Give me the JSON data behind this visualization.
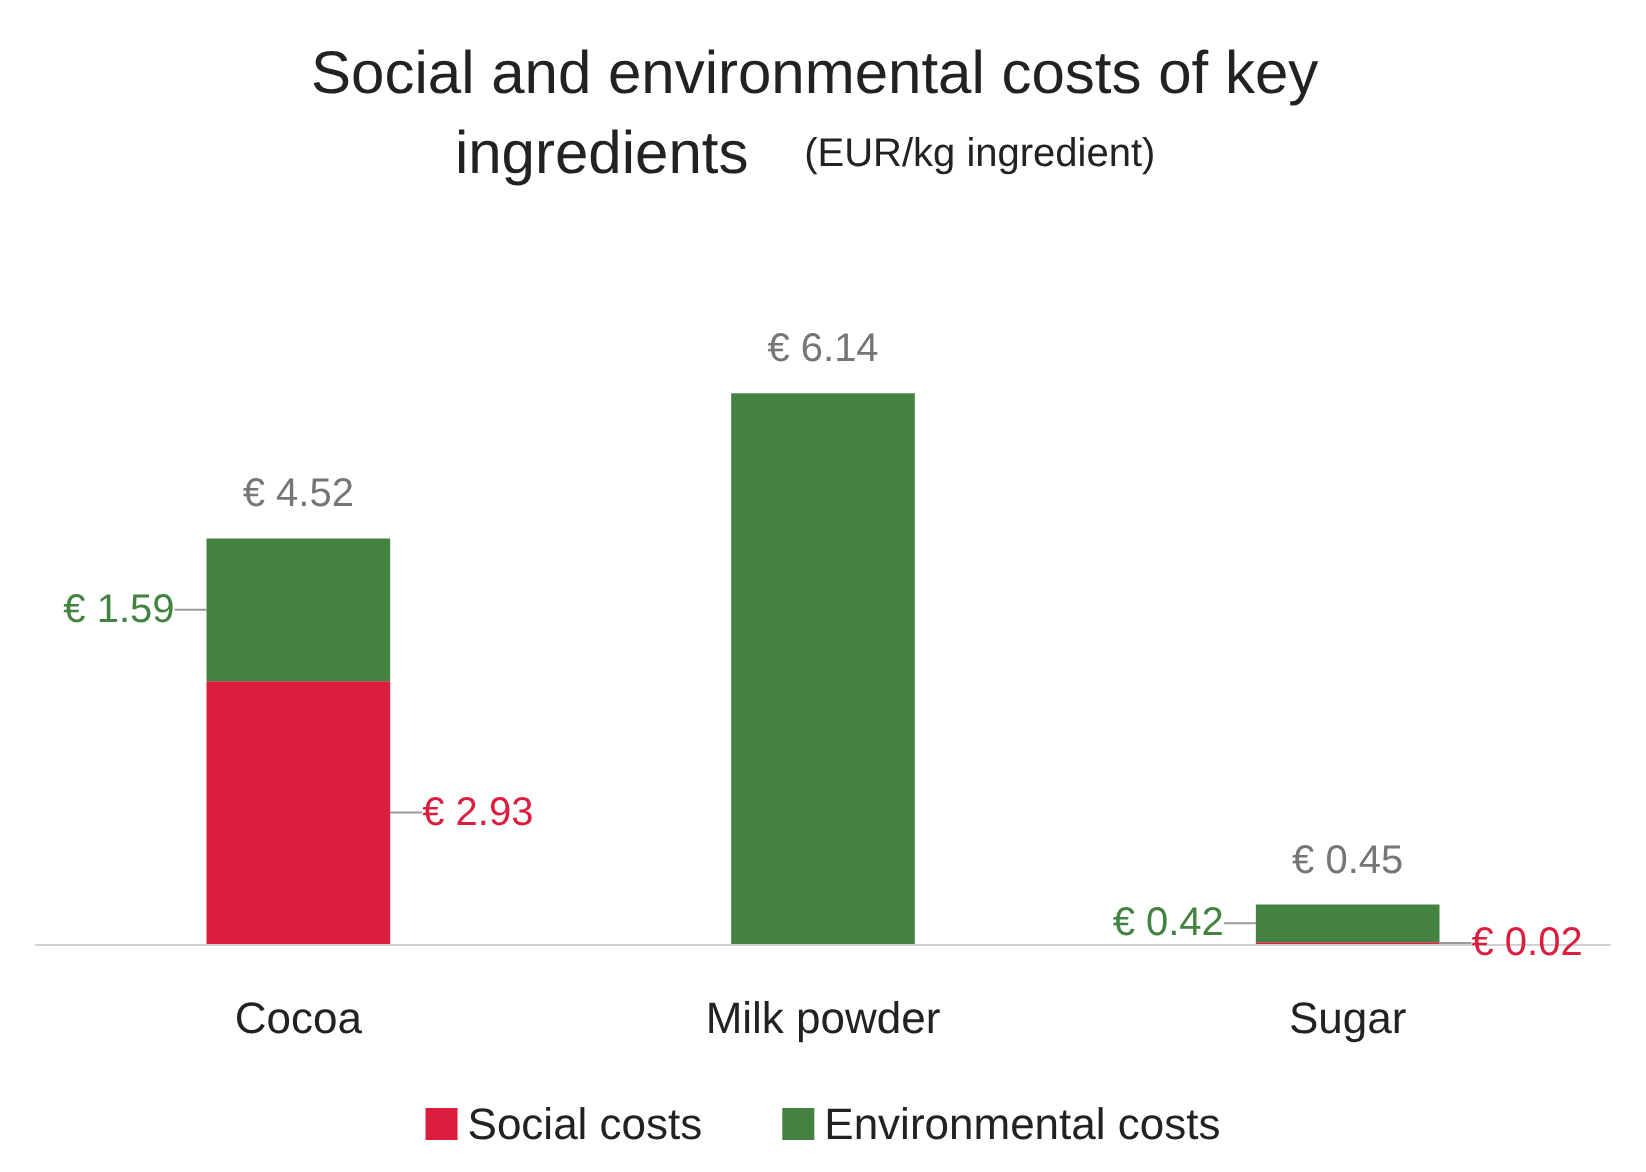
{
  "chart_data": {
    "type": "bar",
    "title": "Social and environmental costs of key ingredients",
    "subtitle": "(EUR/kg ingredient)",
    "categories": [
      "Cocoa",
      "Milk powder",
      "Sugar"
    ],
    "stacked": true,
    "series": [
      {
        "name": "Social costs",
        "color": "#dc1e3e",
        "values": [
          2.93,
          null,
          0.02
        ],
        "value_labels": [
          "€ 2.93",
          null,
          "€ 0.02"
        ]
      },
      {
        "name": "Environmental costs",
        "color": "#438240",
        "values": [
          1.59,
          6.14,
          0.42
        ],
        "value_labels": [
          "€ 1.59",
          "€ 6.14",
          "€ 0.42"
        ]
      }
    ],
    "totals": [
      "€ 4.52",
      null,
      "€ 0.45"
    ],
    "legend": "bottom"
  }
}
